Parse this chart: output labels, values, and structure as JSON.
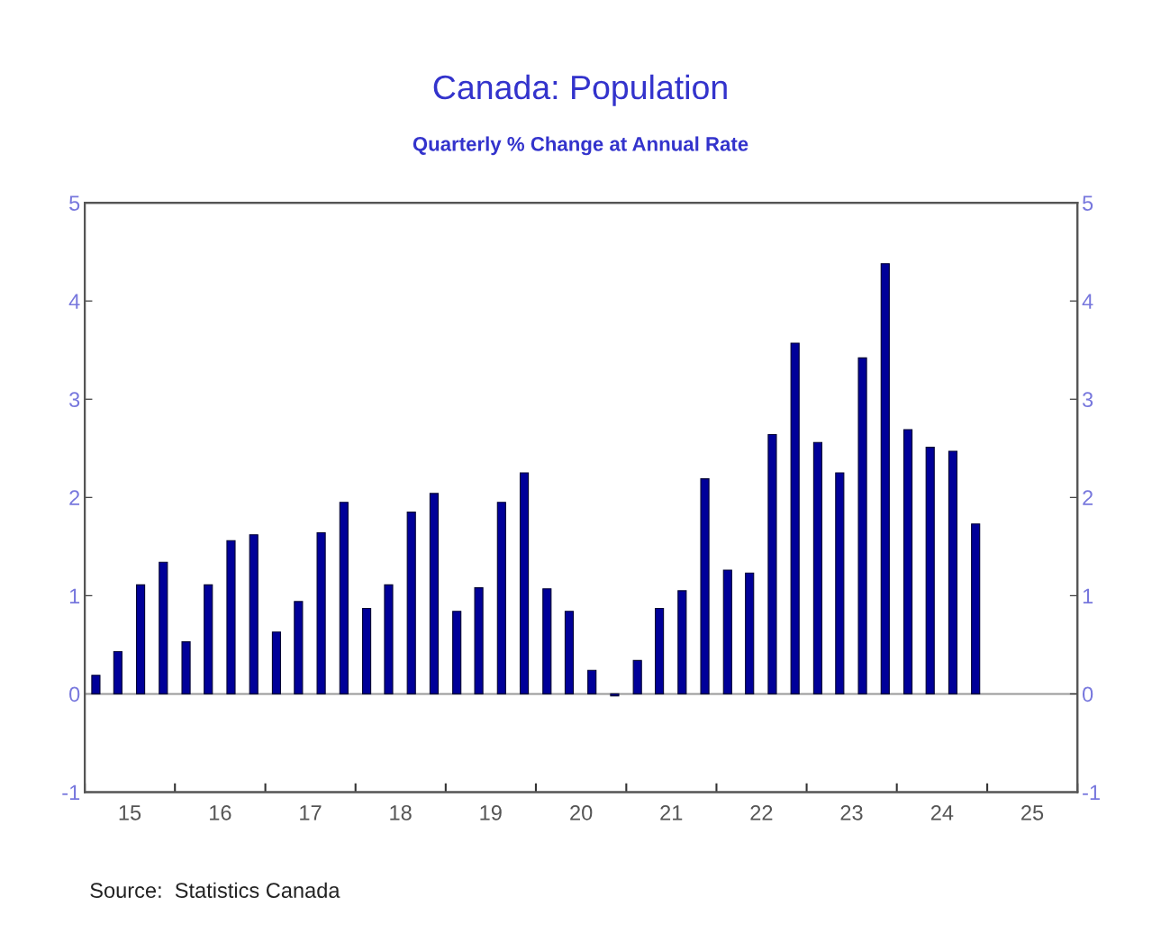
{
  "chart_data": {
    "type": "bar",
    "title": "Canada: Population",
    "subtitle": "Quarterly % Change at Annual Rate",
    "x": [
      "2015-02-15",
      "2015-05-15",
      "2015-08-15",
      "2015-11-15",
      "2016-02-15",
      "2016-05-15",
      "2016-08-15",
      "2016-11-15",
      "2017-02-15",
      "2017-05-15",
      "2017-08-15",
      "2017-11-15",
      "2018-02-15",
      "2018-05-15",
      "2018-08-15",
      "2018-11-15",
      "2019-02-15",
      "2019-05-15",
      "2019-08-15",
      "2019-11-15",
      "2020-02-15",
      "2020-05-15",
      "2020-08-15",
      "2020-11-15",
      "2021-02-15",
      "2021-05-15",
      "2021-08-15",
      "2021-11-15",
      "2022-02-15",
      "2022-05-15",
      "2022-08-15",
      "2022-11-15",
      "2023-02-15",
      "2023-05-15",
      "2023-08-15",
      "2023-11-15",
      "2024-02-15",
      "2024-05-15",
      "2024-08-15",
      "2024-11-15"
    ],
    "series": [
      {
        "color": "#000099",
        "values": [
          0.19,
          0.43,
          1.11,
          1.34,
          0.53,
          1.11,
          1.56,
          1.62,
          0.63,
          0.94,
          1.64,
          1.95,
          0.87,
          1.11,
          1.85,
          2.04,
          0.84,
          1.08,
          1.95,
          2.25,
          1.07,
          0.84,
          0.24,
          -0.02,
          0.34,
          0.87,
          1.05,
          2.19,
          1.26,
          1.23,
          2.64,
          3.57,
          2.56,
          2.25,
          3.42,
          4.38,
          2.69,
          2.51,
          2.47,
          1.73
        ]
      }
    ],
    "xlim": [
      "2015-01-01",
      "2026-01-01"
    ],
    "xticks": [
      {
        "value": "2015-01-01",
        "label": null
      },
      {
        "value": "2015-07-02",
        "label": "15"
      },
      {
        "value": "2016-01-01",
        "label": null
      },
      {
        "value": "2016-07-02",
        "label": "16"
      },
      {
        "value": "2017-01-01",
        "label": null
      },
      {
        "value": "2017-07-02",
        "label": "17"
      },
      {
        "value": "2018-01-01",
        "label": null
      },
      {
        "value": "2018-07-02",
        "label": "18"
      },
      {
        "value": "2019-01-01",
        "label": null
      },
      {
        "value": "2019-07-02",
        "label": "19"
      },
      {
        "value": "2020-01-01",
        "label": null
      },
      {
        "value": "2020-07-02",
        "label": "20"
      },
      {
        "value": "2021-01-01",
        "label": null
      },
      {
        "value": "2021-07-02",
        "label": "21"
      },
      {
        "value": "2022-01-01",
        "label": null
      },
      {
        "value": "2022-07-02",
        "label": "22"
      },
      {
        "value": "2023-01-01",
        "label": null
      },
      {
        "value": "2023-07-02",
        "label": "23"
      },
      {
        "value": "2024-01-01",
        "label": null
      },
      {
        "value": "2024-07-02",
        "label": "24"
      },
      {
        "value": "2025-01-01",
        "label": null
      },
      {
        "value": "2025-07-02",
        "label": "25"
      },
      {
        "value": "2026-01-01",
        "label": null
      }
    ],
    "ylim": [
      -1,
      5
    ],
    "yticks": [
      -1,
      0,
      1,
      2,
      3,
      4,
      5
    ],
    "y2lim": [
      -1,
      5
    ],
    "y2ticks": [
      -1,
      0,
      1,
      2,
      3,
      4,
      5
    ],
    "ref_lines": [
      {
        "axis": "y",
        "value": 0,
        "color": "#999999"
      }
    ],
    "grid": false,
    "legend": false,
    "annotations": [
      "Source:  Statistics Canada"
    ]
  }
}
